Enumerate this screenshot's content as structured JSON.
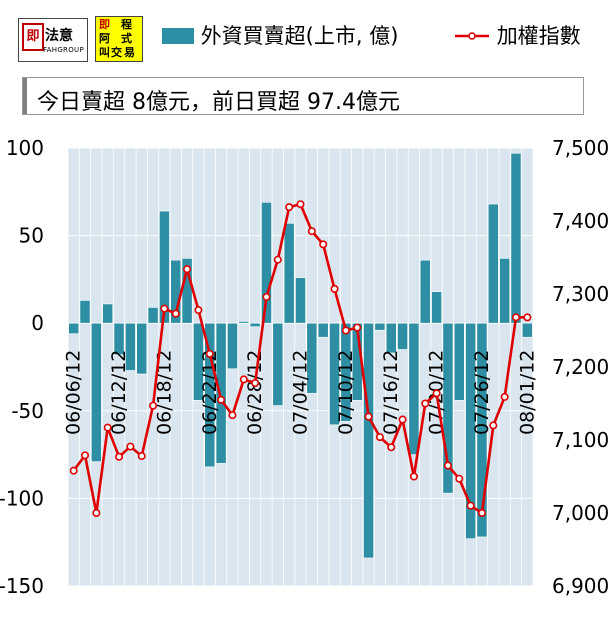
{
  "logos": {
    "brand1_mark": "即",
    "brand1_name": "法意",
    "brand1_sub": "FAHGROUP",
    "brand2_chars": [
      "即",
      "程",
      "阿",
      "式",
      "叫",
      "交",
      "易"
    ]
  },
  "legend": {
    "bar_label": "外資買賣超(上市, 億)",
    "line_label": "加權指數"
  },
  "banner": "今日賣超 8億元，前日買超 97.4億元",
  "colors": {
    "bar": "#2e8fa4",
    "bar_edge": "#ffffff",
    "line": "#e00000",
    "plot_bg": "#d9e6ef",
    "grid": "#ffffff"
  },
  "chart_data": {
    "type": "bar+line",
    "categories": [
      "06/06/12",
      "06/07/12",
      "06/08/12",
      "06/11/12",
      "06/12/12",
      "06/13/12",
      "06/14/12",
      "06/15/12",
      "06/18/12",
      "06/19/12",
      "06/20/12",
      "06/21/12",
      "06/22/12",
      "06/25/12",
      "06/26/12",
      "06/27/12",
      "06/28/12",
      "06/29/12",
      "07/02/12",
      "07/03/12",
      "07/04/12",
      "07/05/12",
      "07/06/12",
      "07/09/12",
      "07/10/12",
      "07/11/12",
      "07/12/12",
      "07/13/12",
      "07/16/12",
      "07/17/12",
      "07/18/12",
      "07/19/12",
      "07/20/12",
      "07/23/12",
      "07/24/12",
      "07/25/12",
      "07/26/12",
      "07/27/12",
      "07/30/12",
      "07/31/12",
      "08/01/12"
    ],
    "x_tick_labels": [
      "06/06/12",
      "06/12/12",
      "06/18/12",
      "06/22/12",
      "06/28/12",
      "07/04/12",
      "07/10/12",
      "07/16/12",
      "07/20/12",
      "07/26/12",
      "08/01/12"
    ],
    "x_tick_indices": [
      0,
      4,
      8,
      12,
      16,
      20,
      24,
      28,
      32,
      36,
      40
    ],
    "series": [
      {
        "name": "外資買賣超(上市, 億)",
        "kind": "bar",
        "axis": "left",
        "values": [
          -6,
          13,
          -79,
          11,
          -18,
          -27,
          -29,
          9,
          64,
          36,
          37,
          -44,
          -82,
          -80,
          -26,
          1,
          -2,
          69,
          -47,
          57,
          26,
          -40,
          -8,
          -58,
          -56,
          -44,
          -134,
          -4,
          -17,
          -15,
          -75,
          36,
          18,
          -97,
          -44,
          -123,
          -122,
          68,
          37,
          97,
          -8
        ]
      },
      {
        "name": "加權指數",
        "kind": "line",
        "axis": "right",
        "values": [
          7058,
          7079,
          7000,
          7117,
          7077,
          7091,
          7078,
          7147,
          7280,
          7273,
          7334,
          7278,
          7218,
          7155,
          7134,
          7183,
          7178,
          7296,
          7347,
          7419,
          7423,
          7386,
          7368,
          7307,
          7250,
          7254,
          7132,
          7104,
          7090,
          7128,
          7050,
          7150,
          7164,
          7065,
          7047,
          7010,
          7000,
          7120,
          7159,
          7268,
          7268
        ]
      }
    ],
    "y_left": {
      "ticks": [
        "100",
        "50",
        "0",
        "-50",
        "-100",
        "-150"
      ],
      "range": [
        -150,
        100
      ]
    },
    "y_right": {
      "ticks": [
        "7,500",
        "7,400",
        "7,300",
        "7,200",
        "7,100",
        "7,000",
        "6,900"
      ],
      "range": [
        6900,
        7500
      ]
    },
    "grid": true,
    "legend_position": "top"
  }
}
